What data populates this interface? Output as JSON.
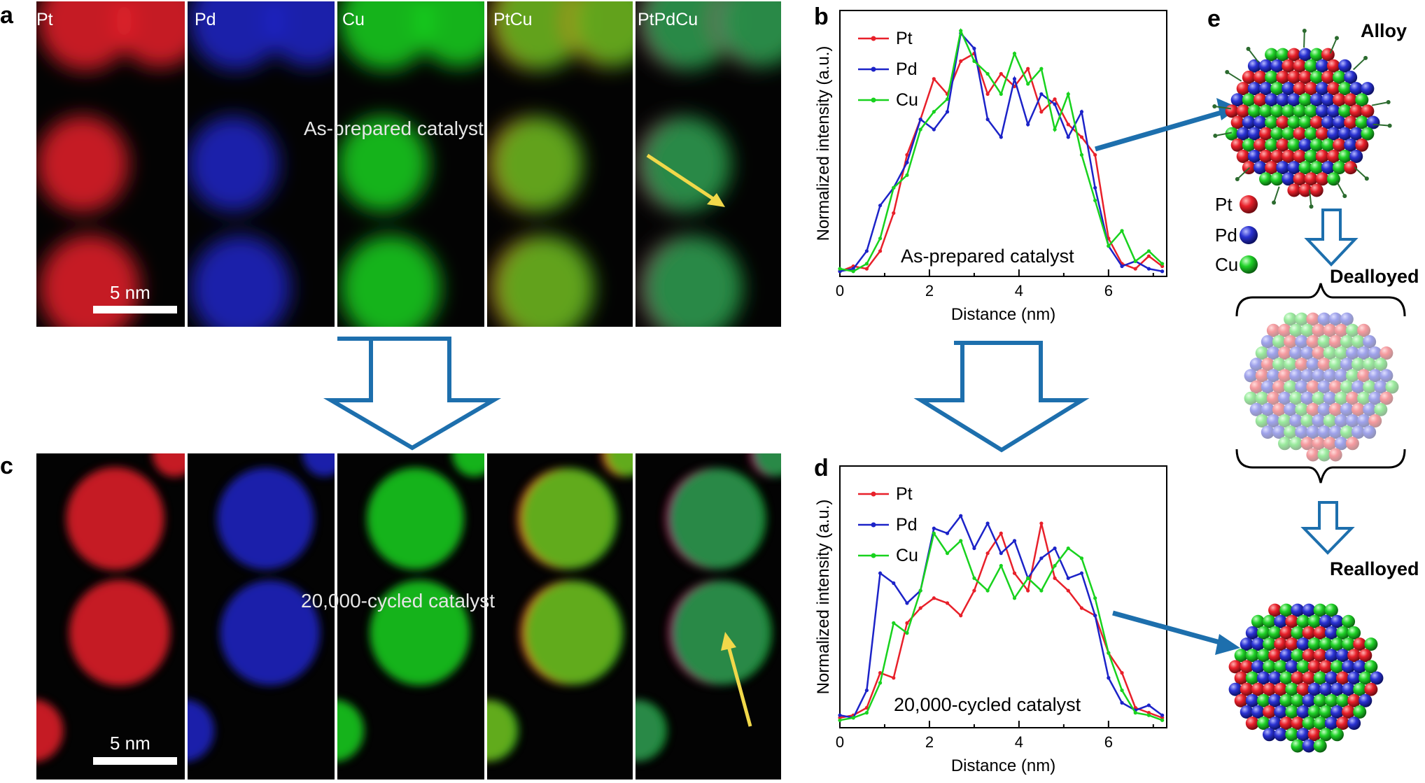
{
  "panels": {
    "a": {
      "letter": "a",
      "maps": [
        "Pt",
        "Pd",
        "Cu",
        "PtCu",
        "PtPdCu"
      ],
      "overlay": "As-prepared catalyst",
      "scale_bar": "5 nm"
    },
    "b": {
      "letter": "b",
      "caption": "As-prepared catalyst"
    },
    "c": {
      "letter": "c",
      "overlay": "20,000-cycled catalyst",
      "scale_bar": "5 nm"
    },
    "d": {
      "letter": "d",
      "caption": "20,000-cycled catalyst"
    },
    "e": {
      "letter": "e",
      "labels": {
        "alloy": "Alloy",
        "dealloyed": "Dealloyed",
        "realloyed": "Realloyed"
      },
      "legend": [
        "Pt",
        "Pd",
        "Cu"
      ]
    }
  },
  "colors": {
    "Pt": "#e8202a",
    "Pd": "#1c23c8",
    "Cu": "#18d21e",
    "arrow_blue": "#1d6fad",
    "yellow": "#f1d84a"
  },
  "chart_data": [
    {
      "type": "line",
      "panel": "b",
      "xlabel": "Distance (nm)",
      "ylabel": "Normalized intensity (a.u.)",
      "xlim": [
        0,
        7.3
      ],
      "ylim": [
        0,
        1.05
      ],
      "xticks": [
        "0",
        "2",
        "4",
        "6"
      ],
      "legend": "top-left",
      "x": [
        0,
        0.3,
        0.6,
        0.9,
        1.2,
        1.5,
        1.8,
        2.1,
        2.4,
        2.7,
        3.0,
        3.3,
        3.6,
        3.9,
        4.2,
        4.5,
        4.8,
        5.1,
        5.4,
        5.7,
        6.0,
        6.3,
        6.6,
        6.9,
        7.2
      ],
      "series": [
        {
          "name": "Pt",
          "values": [
            0.02,
            0.04,
            0.03,
            0.1,
            0.25,
            0.48,
            0.62,
            0.78,
            0.72,
            0.85,
            0.88,
            0.72,
            0.8,
            0.75,
            0.82,
            0.65,
            0.7,
            0.6,
            0.55,
            0.48,
            0.15,
            0.05,
            0.03,
            0.08,
            0.04
          ]
        },
        {
          "name": "Pd",
          "values": [
            0.02,
            0.03,
            0.1,
            0.28,
            0.35,
            0.45,
            0.62,
            0.58,
            0.65,
            0.96,
            0.9,
            0.62,
            0.55,
            0.78,
            0.6,
            0.72,
            0.68,
            0.55,
            0.65,
            0.35,
            0.12,
            0.04,
            0.06,
            0.03,
            0.02
          ]
        },
        {
          "name": "Cu",
          "values": [
            0.03,
            0.02,
            0.05,
            0.15,
            0.35,
            0.4,
            0.58,
            0.65,
            0.7,
            0.97,
            0.85,
            0.8,
            0.72,
            0.88,
            0.76,
            0.82,
            0.58,
            0.72,
            0.48,
            0.3,
            0.12,
            0.18,
            0.06,
            0.1,
            0.05
          ]
        }
      ]
    },
    {
      "type": "line",
      "panel": "d",
      "xlabel": "Distance (nm)",
      "ylabel": "Normalized intensity (a.u.)",
      "xlim": [
        0,
        7.3
      ],
      "ylim": [
        0,
        1.05
      ],
      "xticks": [
        "0",
        "2",
        "4",
        "6"
      ],
      "legend": "top-left",
      "x": [
        0,
        0.3,
        0.6,
        0.9,
        1.2,
        1.5,
        1.8,
        2.1,
        2.4,
        2.7,
        3.0,
        3.3,
        3.6,
        3.9,
        4.2,
        4.5,
        4.8,
        5.1,
        5.4,
        5.7,
        6.0,
        6.3,
        6.6,
        6.9,
        7.2
      ],
      "series": [
        {
          "name": "Pt",
          "values": [
            0.04,
            0.05,
            0.08,
            0.22,
            0.2,
            0.42,
            0.48,
            0.52,
            0.5,
            0.45,
            0.55,
            0.7,
            0.78,
            0.62,
            0.55,
            0.82,
            0.6,
            0.55,
            0.48,
            0.45,
            0.3,
            0.22,
            0.08,
            0.06,
            0.04
          ]
        },
        {
          "name": "Pd",
          "values": [
            0.05,
            0.04,
            0.15,
            0.62,
            0.58,
            0.5,
            0.55,
            0.8,
            0.78,
            0.85,
            0.72,
            0.82,
            0.7,
            0.75,
            0.6,
            0.68,
            0.72,
            0.6,
            0.62,
            0.45,
            0.2,
            0.1,
            0.07,
            0.09,
            0.05
          ]
        },
        {
          "name": "Cu",
          "values": [
            0.03,
            0.04,
            0.06,
            0.18,
            0.42,
            0.38,
            0.55,
            0.78,
            0.7,
            0.75,
            0.6,
            0.55,
            0.65,
            0.52,
            0.6,
            0.55,
            0.65,
            0.72,
            0.68,
            0.52,
            0.3,
            0.15,
            0.06,
            0.05,
            0.03
          ]
        }
      ]
    }
  ]
}
